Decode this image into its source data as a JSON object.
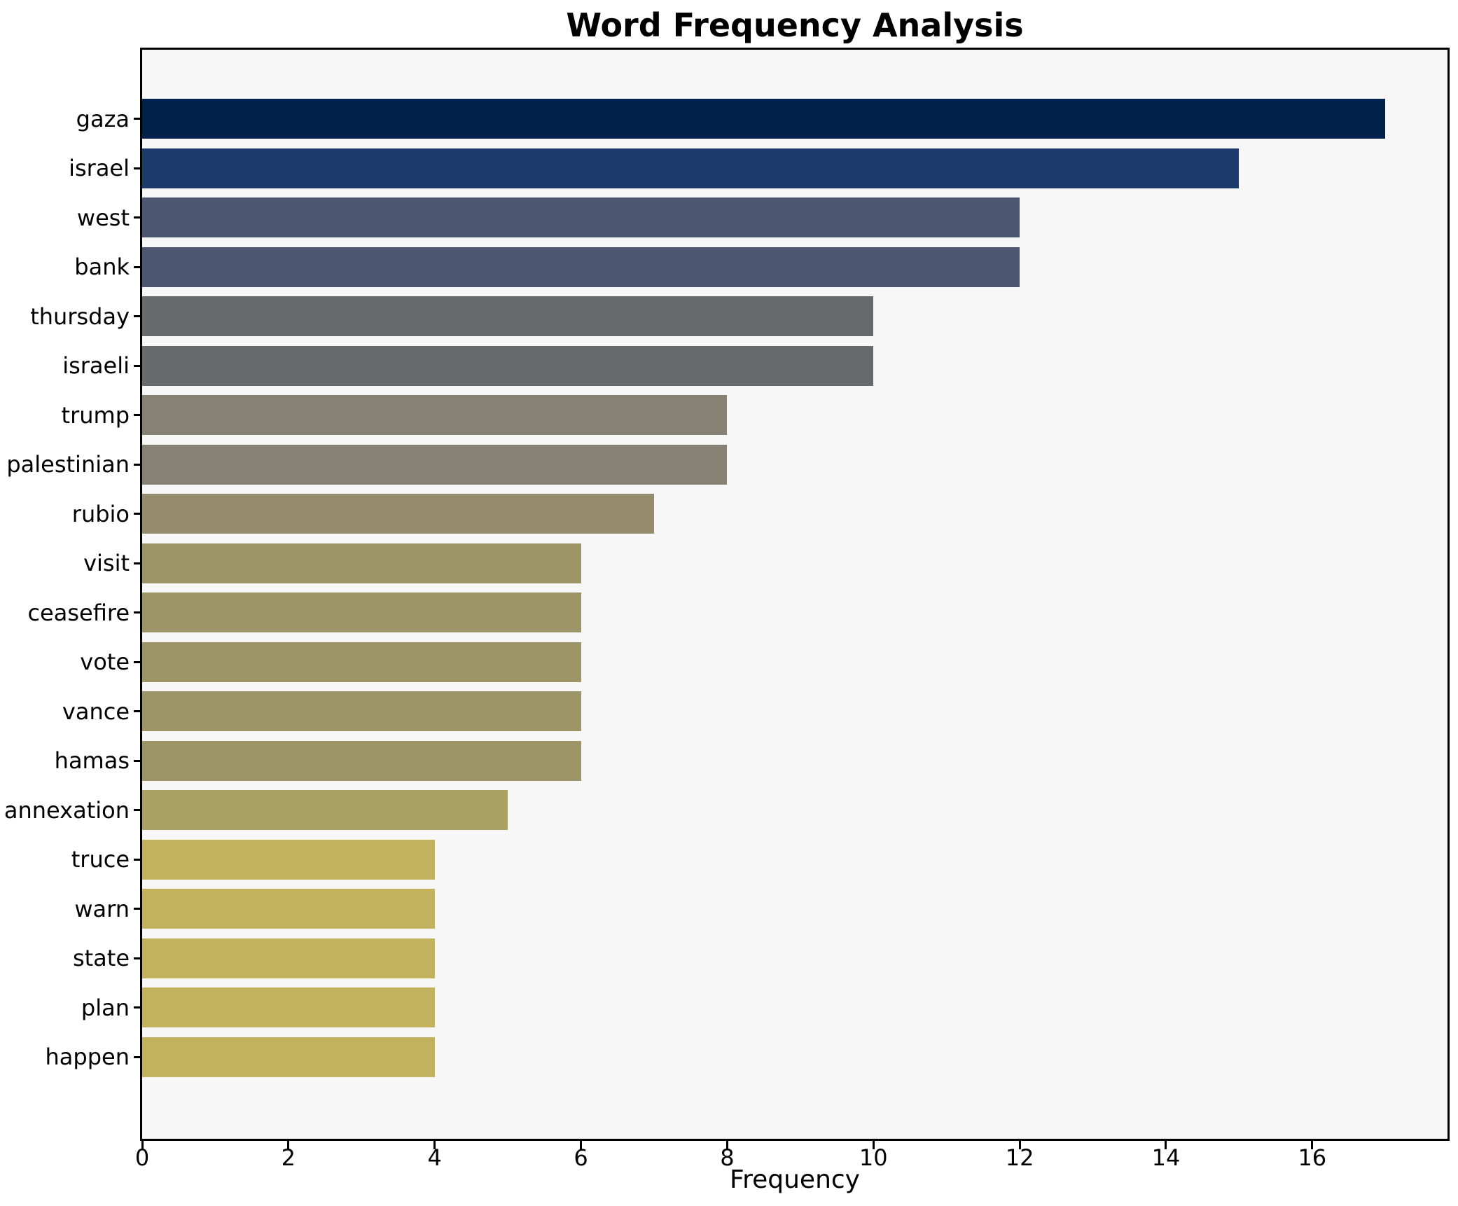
{
  "title": "Word Frequency Analysis",
  "xlabel": "Frequency",
  "colors": {
    "figure_bg": "#ffffff",
    "plot_bg": "#f7f7f8",
    "spine": "#000000",
    "tick": "#000000",
    "text": "#000000"
  },
  "chart_data": {
    "type": "bar",
    "orientation": "horizontal",
    "title": "Word Frequency Analysis",
    "xlabel": "Frequency",
    "ylabel": "",
    "categories": [
      "gaza",
      "israel",
      "west",
      "bank",
      "thursday",
      "israeli",
      "trump",
      "palestinian",
      "rubio",
      "visit",
      "ceasefire",
      "vote",
      "vance",
      "hamas",
      "annexation",
      "truce",
      "warn",
      "state",
      "plan",
      "happen"
    ],
    "values": [
      17,
      15,
      12,
      12,
      10,
      10,
      8,
      8,
      7,
      6,
      6,
      6,
      6,
      6,
      5,
      4,
      4,
      4,
      4,
      4
    ],
    "bar_colors": [
      "#02214d",
      "#1c3a6b",
      "#4d5670",
      "#4d5670",
      "#696a6e",
      "#696a6e",
      "#868173",
      "#868173",
      "#948c6d",
      "#9d9568",
      "#9d9568",
      "#9d9568",
      "#9d9568",
      "#9d9568",
      "#aaa063",
      "#c3b25d",
      "#c3b25d",
      "#c3b25d",
      "#c3b25d",
      "#c3b25d"
    ],
    "xlim": [
      0,
      17.85
    ],
    "xticks": [
      0,
      2,
      4,
      6,
      8,
      10,
      12,
      14,
      16
    ],
    "grid": false,
    "legend": false,
    "colormap": "cividis"
  }
}
